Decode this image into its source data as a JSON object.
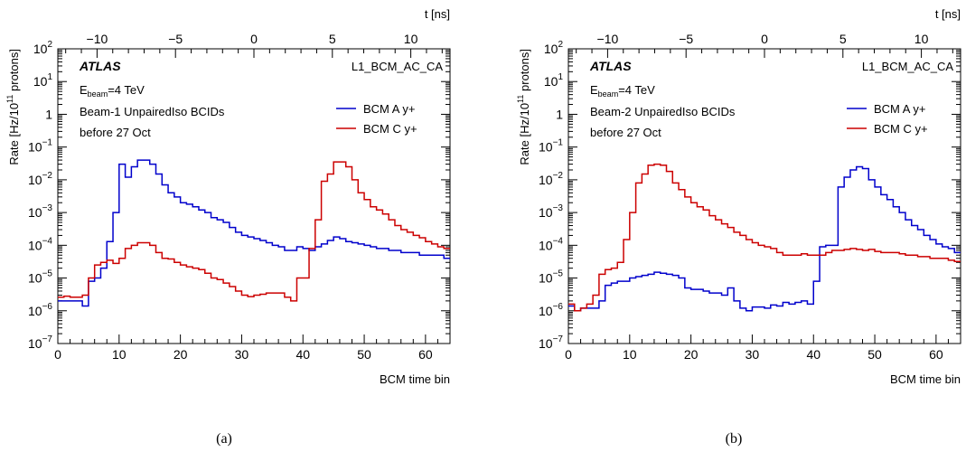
{
  "chart_data": [
    {
      "type": "line",
      "caption": "(a)",
      "xlabel": "BCM time bin",
      "ylabel_parts": {
        "prefix": "Rate [Hz/10",
        "sup": "11",
        "suffix": " protons]"
      },
      "top_axis_label": "t [ns]",
      "xlim": [
        0,
        64
      ],
      "ylim_log10": [
        -7,
        2
      ],
      "log_y": true,
      "x_ticks": [
        "0",
        "10",
        "20",
        "30",
        "40",
        "50",
        "60"
      ],
      "top_ticks": [
        "−10",
        "−5",
        "0",
        "5",
        "10"
      ],
      "y_tick_exponents": [
        "2",
        "1",
        "−1",
        "−2",
        "−3",
        "−4",
        "−5",
        "−6",
        "−7"
      ],
      "y_tick_plain": [
        "1"
      ],
      "experiment": "ATLAS",
      "trigger": "L1_BCM_AC_CA",
      "energy": {
        "symbol": "E",
        "sub": "beam",
        "value": "=4 TeV"
      },
      "info_lines": [
        "Beam-1 UnpairedIso BCIDs",
        "before 27 Oct"
      ],
      "legend": [
        {
          "name": "BCM A y+",
          "color": "#0000cc"
        },
        {
          "name": "BCM C y+",
          "color": "#cc0000"
        }
      ],
      "series": [
        {
          "name": "BCM A y+",
          "color": "#0000cc",
          "values": [
            2e-06,
            2e-06,
            2e-06,
            2e-06,
            1.4e-06,
            8e-06,
            1e-05,
            2e-05,
            0.00013,
            0.001,
            0.03,
            0.012,
            0.025,
            0.04,
            0.04,
            0.03,
            0.015,
            0.007,
            0.004,
            0.003,
            0.002,
            0.0018,
            0.0015,
            0.0012,
            0.001,
            0.0007,
            0.0006,
            0.0005,
            0.00035,
            0.00025,
            0.0002,
            0.00018,
            0.00016,
            0.00014,
            0.00012,
            0.0001,
            9e-05,
            7e-05,
            7e-05,
            9e-05,
            8e-05,
            7e-05,
            9e-05,
            0.00011,
            0.00014,
            0.00018,
            0.00016,
            0.00013,
            0.00012,
            0.00011,
            0.0001,
            9e-05,
            8e-05,
            8e-05,
            7e-05,
            7e-05,
            6e-05,
            6e-05,
            6e-05,
            5e-05,
            5e-05,
            5e-05,
            5e-05,
            4e-05
          ]
        },
        {
          "name": "BCM C y+",
          "color": "#cc0000",
          "values": [
            2.6e-06,
            2.8e-06,
            2.6e-06,
            2.6e-06,
            3e-06,
            1e-05,
            2.5e-05,
            3e-05,
            3.5e-05,
            2.8e-05,
            4e-05,
            8e-05,
            0.0001,
            0.00012,
            0.00012,
            0.0001,
            6e-05,
            4e-05,
            3.8e-05,
            3e-05,
            2.5e-05,
            2.2e-05,
            2e-05,
            1.8e-05,
            1.4e-05,
            1e-05,
            9e-06,
            7e-06,
            5.5e-06,
            4e-06,
            3e-06,
            2.7e-06,
            3e-06,
            3.2e-06,
            3.5e-06,
            3.5e-06,
            3.5e-06,
            2.6e-06,
            2e-06,
            1e-05,
            1e-05,
            8e-05,
            0.0006,
            0.009,
            0.015,
            0.035,
            0.035,
            0.025,
            0.01,
            0.004,
            0.0025,
            0.0015,
            0.0012,
            0.0009,
            0.0006,
            0.0004,
            0.0003,
            0.00025,
            0.0002,
            0.00017,
            0.00013,
            0.00011,
            9e-05,
            8e-05
          ]
        }
      ]
    },
    {
      "type": "line",
      "caption": "(b)",
      "xlabel": "BCM time bin",
      "ylabel_parts": {
        "prefix": "Rate [Hz/10",
        "sup": "11",
        "suffix": " protons]"
      },
      "top_axis_label": "t [ns]",
      "xlim": [
        0,
        64
      ],
      "ylim_log10": [
        -7,
        2
      ],
      "log_y": true,
      "x_ticks": [
        "0",
        "10",
        "20",
        "30",
        "40",
        "50",
        "60"
      ],
      "top_ticks": [
        "−10",
        "−5",
        "0",
        "5",
        "10"
      ],
      "y_tick_exponents": [
        "2",
        "1",
        "−1",
        "−2",
        "−3",
        "−4",
        "−5",
        "−6",
        "−7"
      ],
      "y_tick_plain": [
        "1"
      ],
      "experiment": "ATLAS",
      "trigger": "L1_BCM_AC_CA",
      "energy": {
        "symbol": "E",
        "sub": "beam",
        "value": "=4 TeV"
      },
      "info_lines": [
        "Beam-2 UnpairedIso BCIDs",
        "before 27 Oct"
      ],
      "legend": [
        {
          "name": "BCM A y+",
          "color": "#0000cc"
        },
        {
          "name": "BCM C y+",
          "color": "#cc0000"
        }
      ],
      "series": [
        {
          "name": "BCM A y+",
          "color": "#0000cc",
          "values": [
            1.4e-06,
            1e-06,
            1.2e-06,
            1.2e-06,
            1.2e-06,
            2e-06,
            6e-06,
            7e-06,
            8e-06,
            8e-06,
            1e-05,
            1.1e-05,
            1.2e-05,
            1.3e-05,
            1.5e-05,
            1.4e-05,
            1.3e-05,
            1.2e-05,
            1e-05,
            5e-06,
            4.5e-06,
            4.5e-06,
            4e-06,
            3.5e-06,
            3.5e-06,
            3e-06,
            5e-06,
            2e-06,
            1.2e-06,
            1e-06,
            1.3e-06,
            1.3e-06,
            1.2e-06,
            1.5e-06,
            1.4e-06,
            1.8e-06,
            1.6e-06,
            1.8e-06,
            2e-06,
            1.6e-06,
            8e-06,
            9e-05,
            0.0001,
            0.0001,
            0.006,
            0.012,
            0.02,
            0.025,
            0.022,
            0.01,
            0.006,
            0.0035,
            0.0025,
            0.0015,
            0.001,
            0.0006,
            0.0004,
            0.0003,
            0.0002,
            0.00015,
            0.00011,
            9e-05,
            8e-05,
            6e-05
          ]
        },
        {
          "name": "BCM C y+",
          "color": "#cc0000",
          "values": [
            1.6e-06,
            1e-06,
            1.2e-06,
            1.6e-06,
            3e-06,
            1.3e-05,
            1.8e-05,
            2e-05,
            3e-05,
            0.00015,
            0.001,
            0.008,
            0.015,
            0.028,
            0.03,
            0.028,
            0.018,
            0.008,
            0.005,
            0.003,
            0.002,
            0.0015,
            0.0012,
            0.0008,
            0.0006,
            0.00045,
            0.00035,
            0.00025,
            0.0002,
            0.00015,
            0.00012,
            0.0001,
            9e-05,
            8e-05,
            6e-05,
            5e-05,
            5e-05,
            5e-05,
            5.5e-05,
            5e-05,
            5e-05,
            5e-05,
            6e-05,
            7e-05,
            7e-05,
            7.5e-05,
            8e-05,
            7.5e-05,
            7e-05,
            7.5e-05,
            6.5e-05,
            6e-05,
            6e-05,
            6e-05,
            5.5e-05,
            5e-05,
            5e-05,
            4.5e-05,
            4.5e-05,
            4e-05,
            4e-05,
            4e-05,
            3.5e-05,
            3.2e-05
          ]
        }
      ]
    }
  ]
}
